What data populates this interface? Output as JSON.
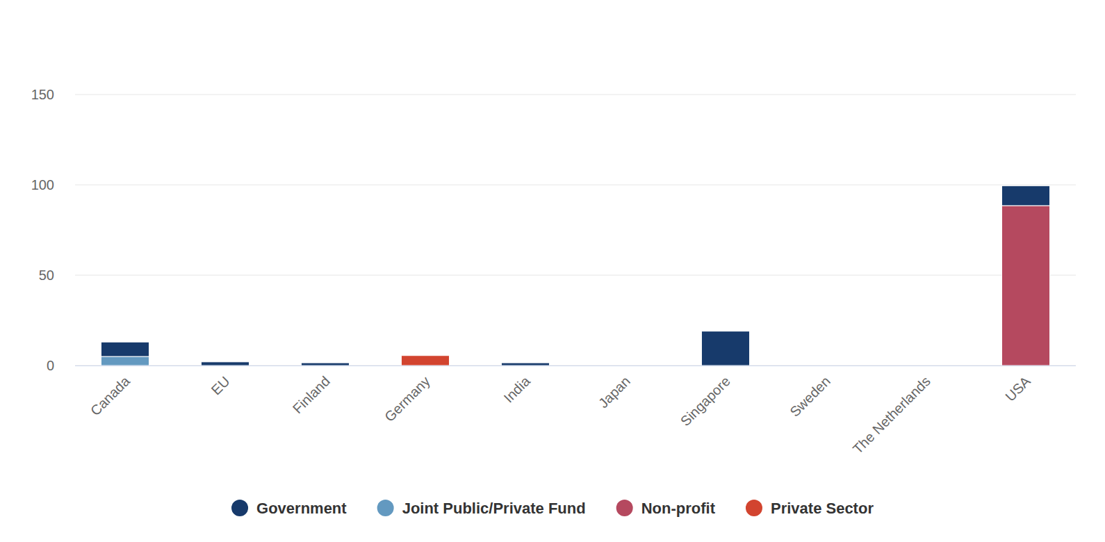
{
  "chart_data": {
    "type": "bar",
    "stacked": true,
    "grid": true,
    "legend": "bottom",
    "categories": [
      "Canada",
      "EU",
      "Finland",
      "Germany",
      "India",
      "Japan",
      "Singapore",
      "Sweden",
      "The Netherlands",
      "USA"
    ],
    "series": [
      {
        "name": "Government",
        "color": "#173a6b",
        "values": [
          8,
          2,
          1.5,
          0,
          1.5,
          0,
          19,
          0,
          0,
          11
        ]
      },
      {
        "name": "Joint Public/Private Fund",
        "color": "#6399c0",
        "values": [
          5,
          0,
          0,
          0,
          0,
          0,
          0,
          0,
          0,
          0
        ]
      },
      {
        "name": "Non-profit",
        "color": "#b5495f",
        "values": [
          0,
          0,
          0,
          0,
          0,
          0,
          0,
          0,
          0,
          88.5
        ]
      },
      {
        "name": "Private Sector",
        "color": "#d2442f",
        "values": [
          0,
          0,
          0,
          5.5,
          0,
          0,
          0,
          0,
          0,
          0
        ]
      }
    ],
    "ylim": [
      0,
      150
    ],
    "yticks": [
      0,
      50,
      100,
      150
    ]
  }
}
